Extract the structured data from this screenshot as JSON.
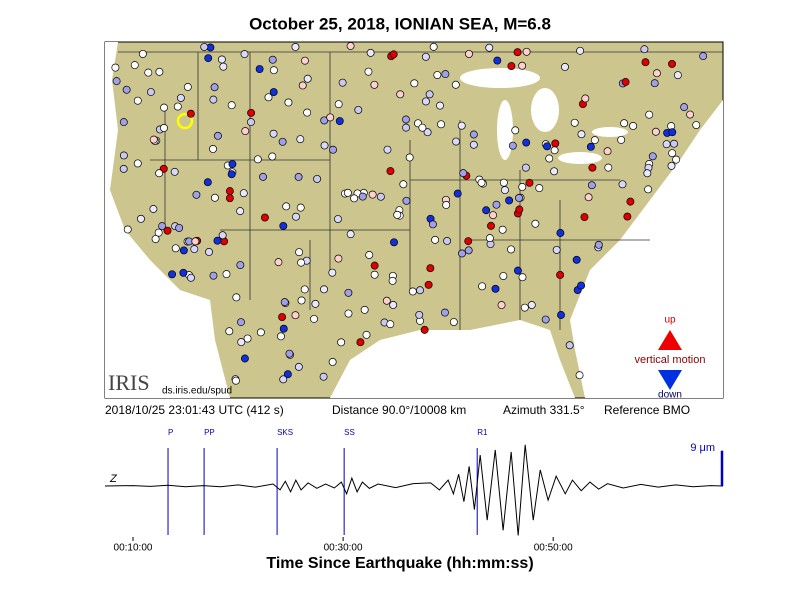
{
  "title": "October 25, 2018, IONIAN SEA, M=6.8",
  "info": {
    "time": "2018/10/25 23:01:43 UTC (412 s)",
    "distance": "Distance  90.0°/10008 km",
    "azimuth": "Azimuth 331.5°",
    "reference": "Reference BMO"
  },
  "map": {
    "logo": "IRIS",
    "url": "ds.iris.edu/spud",
    "up": "up",
    "motion": "vertical motion",
    "down": "down"
  },
  "chart_data": {
    "type": "line",
    "x_label": "Time Since Earthquake (hh:mm:ss)",
    "xlim": [
      440,
      3970
    ],
    "xticks": [
      {
        "value": 600,
        "label": "00:10:00"
      },
      {
        "value": 1800,
        "label": "00:30:00"
      },
      {
        "value": 3000,
        "label": "00:50:00"
      }
    ],
    "ylim": [
      -13,
      13
    ],
    "scale_bar": {
      "value": 9,
      "label": "9 μm"
    },
    "phases": [
      {
        "name": "P",
        "x": 800
      },
      {
        "name": "PP",
        "x": 1006
      },
      {
        "name": "SKS",
        "x": 1423
      },
      {
        "name": "SS",
        "x": 1806
      },
      {
        "name": "R1",
        "x": 2566
      }
    ],
    "phase_color": "#0000c0",
    "x": [
      440,
      600,
      700,
      800,
      900,
      1000,
      1100,
      1200,
      1300,
      1400,
      1440,
      1470,
      1500,
      1530,
      1560,
      1600,
      1650,
      1700,
      1750,
      1790,
      1820,
      1850,
      1880,
      1910,
      1950,
      2000,
      2100,
      2200,
      2300,
      2350,
      2400,
      2430,
      2460,
      2490,
      2520,
      2550,
      2583,
      2623,
      2669,
      2714,
      2760,
      2800,
      2840,
      2886,
      2926,
      2971,
      3017,
      3069,
      3110,
      3160,
      3210,
      3260,
      3310,
      3400,
      3500,
      3600,
      3700,
      3800,
      3900,
      3970
    ],
    "series": [
      {
        "name": "Z",
        "color": "#000000",
        "values": [
          0,
          0.1,
          -0.1,
          0.2,
          -0.2,
          0.1,
          -0.2,
          0.3,
          -0.3,
          0.5,
          -1,
          1.2,
          -1.5,
          1.5,
          -1,
          0.8,
          -0.6,
          0.5,
          -0.5,
          1,
          -2,
          2,
          -1.5,
          1,
          -0.6,
          0.5,
          -0.4,
          0.6,
          0.8,
          -1,
          1.5,
          -2,
          3,
          -4,
          5,
          -6,
          7.9,
          -8.7,
          9.2,
          -11.3,
          8.7,
          -12.6,
          10.5,
          -8.7,
          4.1,
          -3.6,
          2.5,
          -2,
          1.5,
          -1.2,
          1,
          -0.8,
          0.6,
          -0.5,
          0.4,
          -0.3,
          0.3,
          -0.2,
          0.1,
          0
        ]
      }
    ]
  }
}
